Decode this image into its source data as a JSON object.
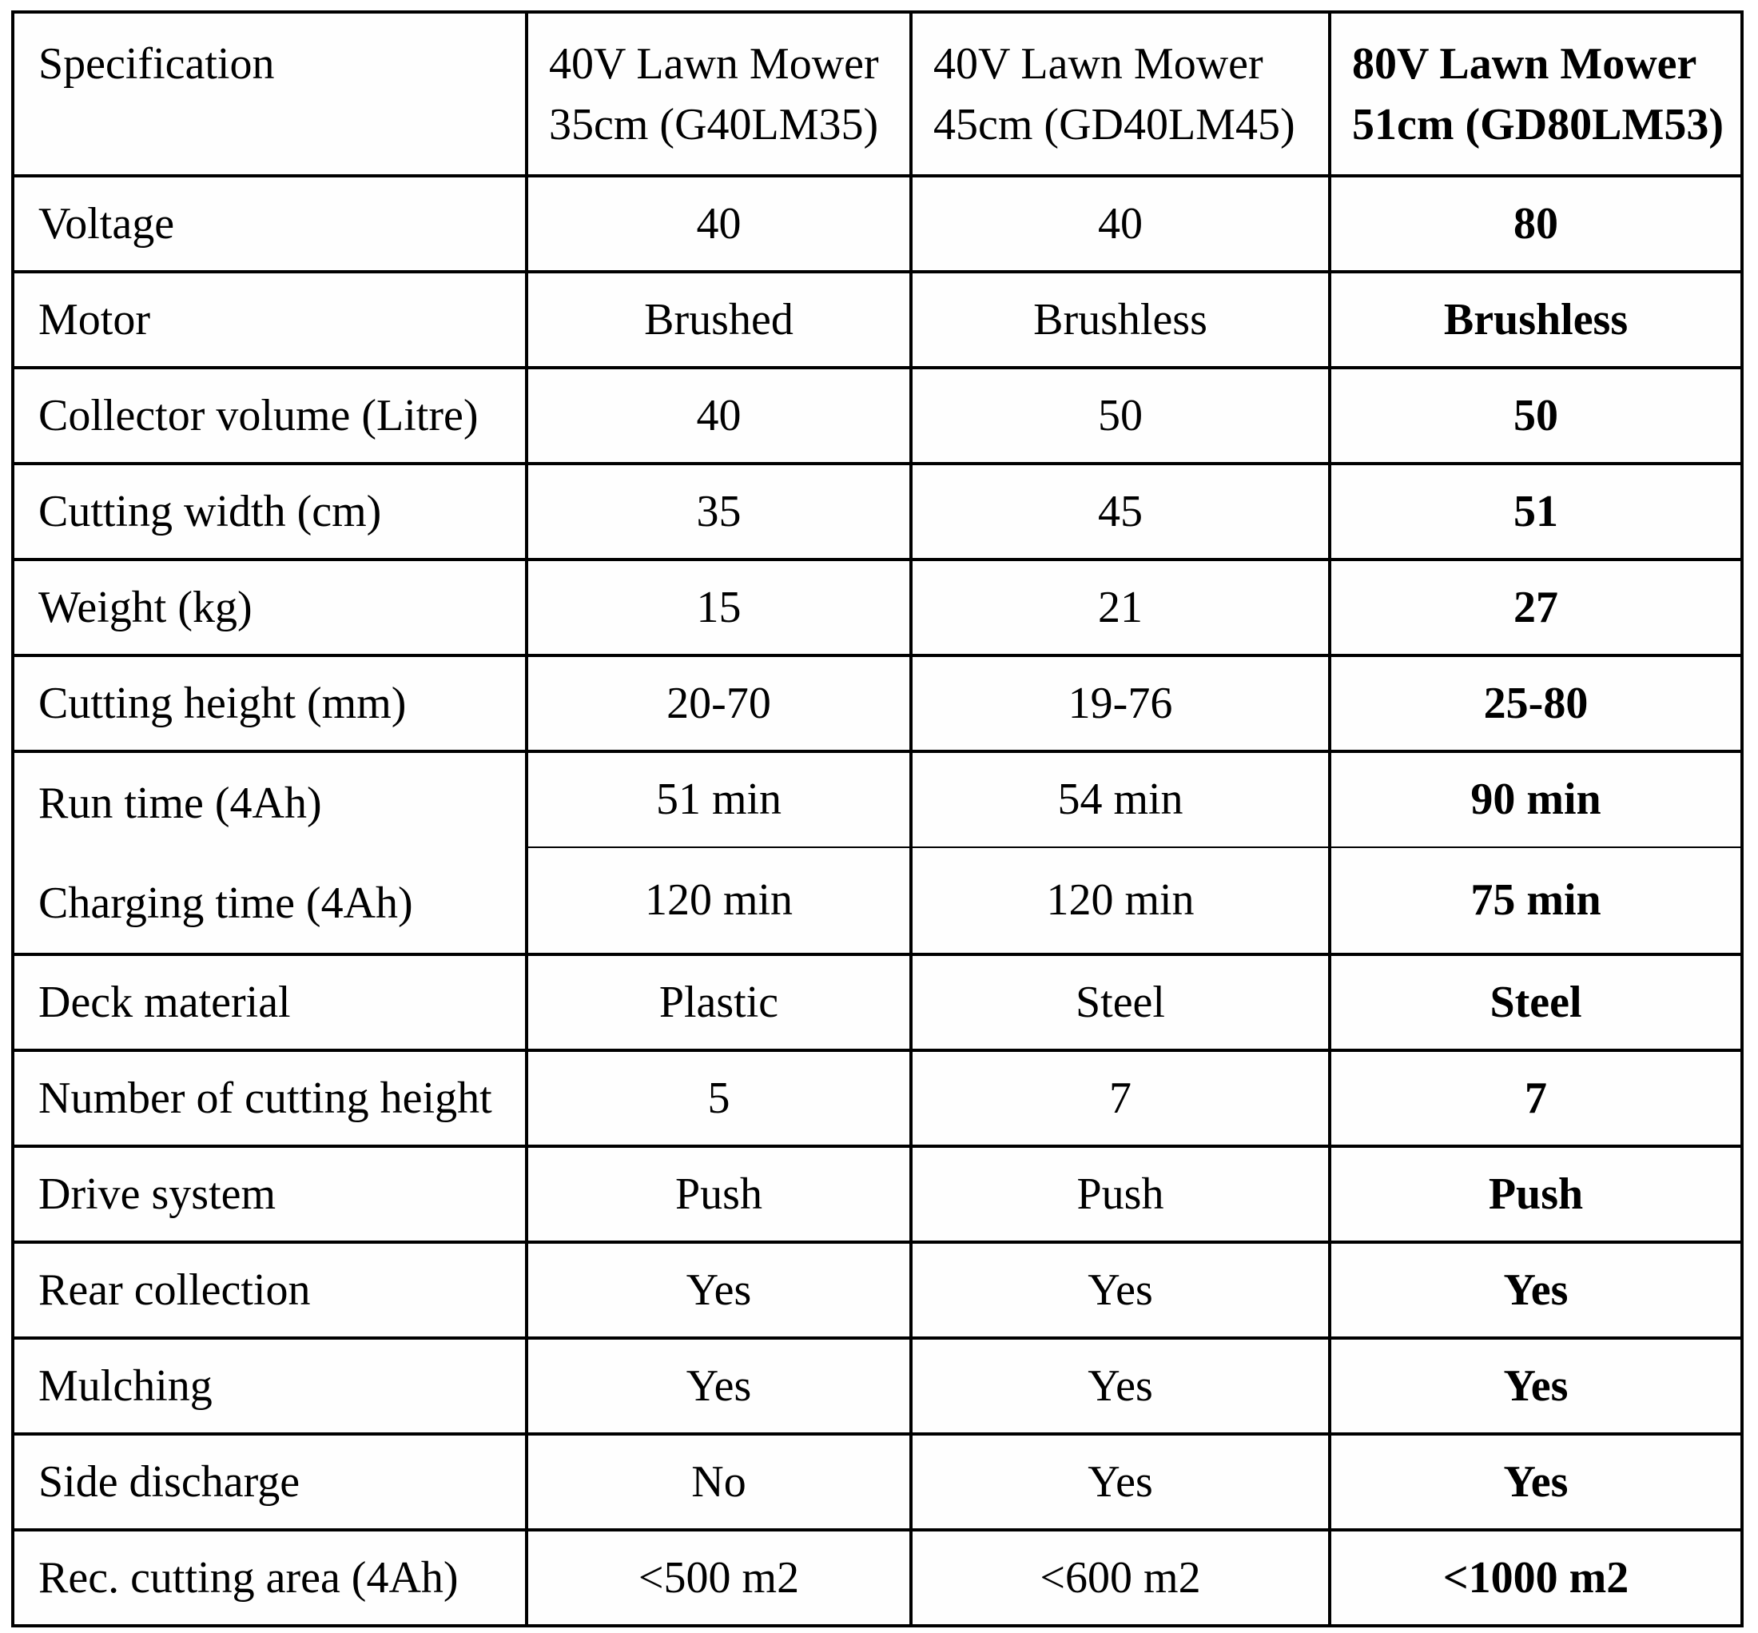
{
  "colors": {
    "background": "#ffffff",
    "border": "#000000",
    "text": "#000000"
  },
  "table": {
    "header": {
      "spec_label": "Specification",
      "products": [
        {
          "line1": "40V Lawn Mower",
          "line2": "35cm (G40LM35)",
          "highlight": false
        },
        {
          "line1": "40V Lawn Mower",
          "line2": "45cm (GD40LM45)",
          "highlight": false
        },
        {
          "line1": "80V Lawn Mower",
          "line2": "51cm (GD80LM53)",
          "highlight": true
        }
      ]
    },
    "rows": [
      {
        "label": "Voltage",
        "values": [
          "40",
          "40",
          "80"
        ]
      },
      {
        "label": "Motor",
        "values": [
          "Brushed",
          "Brushless",
          "Brushless"
        ]
      },
      {
        "label": "Collector volume (Litre)",
        "values": [
          "40",
          "50",
          "50"
        ]
      },
      {
        "label": "Cutting width (cm)",
        "values": [
          "35",
          "45",
          "51"
        ]
      },
      {
        "label": "Weight (kg)",
        "values": [
          "15",
          "21",
          "27"
        ]
      },
      {
        "label": "Cutting height (mm)",
        "values": [
          "20-70",
          "19-76",
          "25-80"
        ]
      },
      {
        "label": "Run time (4Ah)",
        "values": [
          "51 min",
          "54 min",
          "90 min"
        ]
      },
      {
        "label": "Charging time (4Ah)",
        "values": [
          "120 min",
          "120 min",
          "75 min"
        ]
      },
      {
        "label": "Deck material",
        "values": [
          "Plastic",
          "Steel",
          "Steel"
        ]
      },
      {
        "label": "Number of cutting height",
        "values": [
          "5",
          "7",
          "7"
        ]
      },
      {
        "label": "Drive system",
        "values": [
          "Push",
          "Push",
          "Push"
        ]
      },
      {
        "label": "Rear collection",
        "values": [
          "Yes",
          "Yes",
          "Yes"
        ]
      },
      {
        "label": "Mulching",
        "values": [
          "Yes",
          "Yes",
          "Yes"
        ]
      },
      {
        "label": "Side discharge",
        "values": [
          "No",
          "Yes",
          "Yes"
        ]
      },
      {
        "label": "Rec. cutting area (4Ah)",
        "values": [
          "<500 m2",
          "<600 m2",
          "<1000 m2"
        ]
      }
    ]
  }
}
